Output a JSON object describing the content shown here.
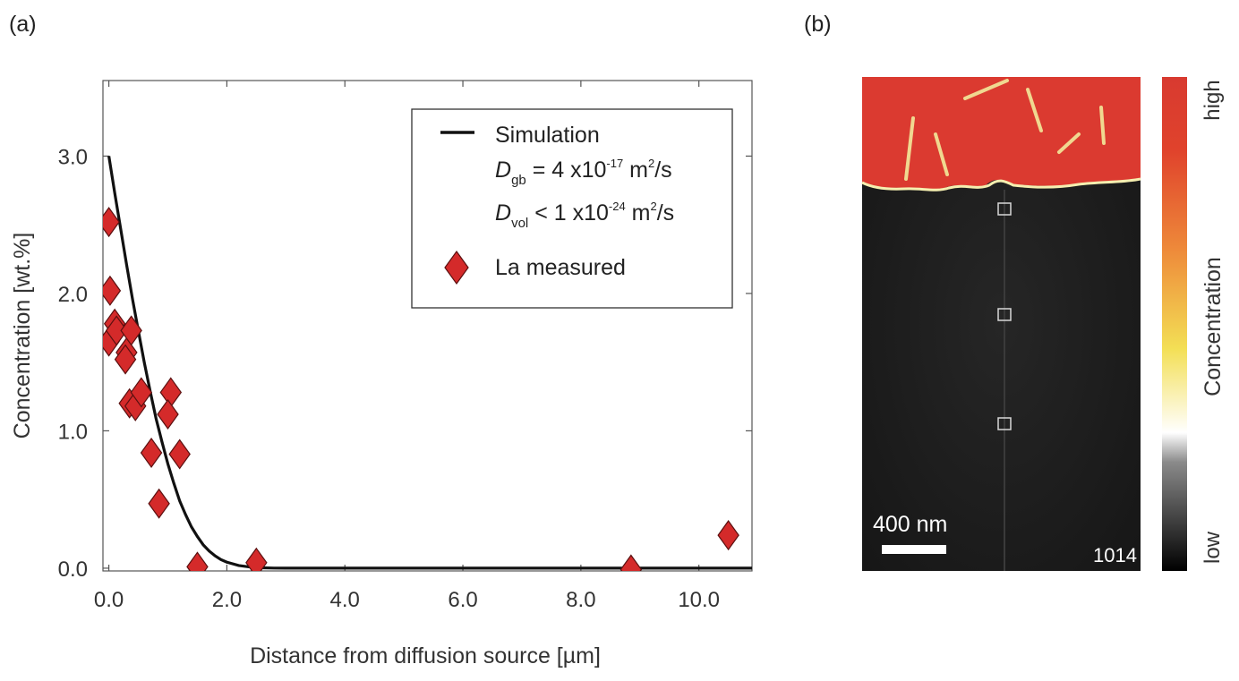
{
  "panels": {
    "a": "(a)",
    "b": "(b)"
  },
  "chart_data": {
    "type": "scatter",
    "xlabel": "Distance from diffusion source [µm]",
    "ylabel": "Concentration [wt.%]",
    "xlim": [
      -0.1,
      10.9
    ],
    "ylim": [
      -0.02,
      3.55
    ],
    "xticks": [
      0.0,
      2.0,
      4.0,
      6.0,
      8.0,
      10.0
    ],
    "xtick_labels": [
      "0.0",
      "2.0",
      "4.0",
      "6.0",
      "8.0",
      "10.0"
    ],
    "yticks": [
      0.0,
      1.0,
      2.0,
      3.0
    ],
    "ytick_labels": [
      "0.0",
      "1.0",
      "2.0",
      "3.0"
    ],
    "grid": false,
    "series": [
      {
        "name": "Simulation",
        "kind": "line",
        "color": "#111111",
        "x": [
          0,
          0.1,
          0.2,
          0.3,
          0.4,
          0.5,
          0.6,
          0.7,
          0.8,
          0.9,
          1.0,
          1.1,
          1.2,
          1.3,
          1.4,
          1.5,
          1.6,
          1.7,
          1.8,
          1.9,
          2.0,
          2.2,
          2.4,
          2.6,
          2.8,
          3.0,
          4.0,
          6.0,
          8.0,
          10.0,
          10.9
        ],
        "y": [
          3.0,
          2.73,
          2.47,
          2.21,
          1.96,
          1.73,
          1.5,
          1.29,
          1.09,
          0.92,
          0.76,
          0.62,
          0.49,
          0.39,
          0.3,
          0.23,
          0.17,
          0.125,
          0.09,
          0.063,
          0.044,
          0.02,
          0.008,
          0.003,
          0.001,
          0.0,
          0.0,
          0.0,
          0.0,
          0.0,
          0.0
        ]
      },
      {
        "name": "La measured",
        "kind": "scatter",
        "color": "#d42a2a",
        "points": [
          [
            0.0,
            2.52
          ],
          [
            0.02,
            2.02
          ],
          [
            0.0,
            1.65
          ],
          [
            0.1,
            1.78
          ],
          [
            0.13,
            1.73
          ],
          [
            0.3,
            1.57
          ],
          [
            0.28,
            1.52
          ],
          [
            0.38,
            1.73
          ],
          [
            0.35,
            1.2
          ],
          [
            0.45,
            1.18
          ],
          [
            0.55,
            1.28
          ],
          [
            1.05,
            1.28
          ],
          [
            1.0,
            1.12
          ],
          [
            0.72,
            0.84
          ],
          [
            1.2,
            0.83
          ],
          [
            0.85,
            0.47
          ],
          [
            1.5,
            0.01
          ],
          [
            2.5,
            0.04
          ],
          [
            8.85,
            -0.01
          ],
          [
            10.5,
            0.24
          ]
        ]
      }
    ],
    "legend": {
      "position": "top-right",
      "simulation_label": "Simulation",
      "dgb": {
        "sym": "D",
        "sub": "gb",
        "pre": " = 4 x10",
        "sup": "-17",
        "post1": " m",
        "sup2": "2",
        "post2": "/s"
      },
      "dvol": {
        "sym": "D",
        "sub": "vol",
        "pre": " < 1 x10",
        "sup": "-24",
        "post1": " m",
        "sup2": "2",
        "post2": "/s"
      },
      "measured_label": "La measured"
    }
  },
  "micrograph": {
    "scale_bar": "400 nm",
    "image_id": "1014",
    "colorbar": {
      "high": "high",
      "low": "low",
      "title": "Concentration"
    },
    "colors": {
      "phase": "#db3a30",
      "matrix": "#1c1c1c"
    }
  }
}
